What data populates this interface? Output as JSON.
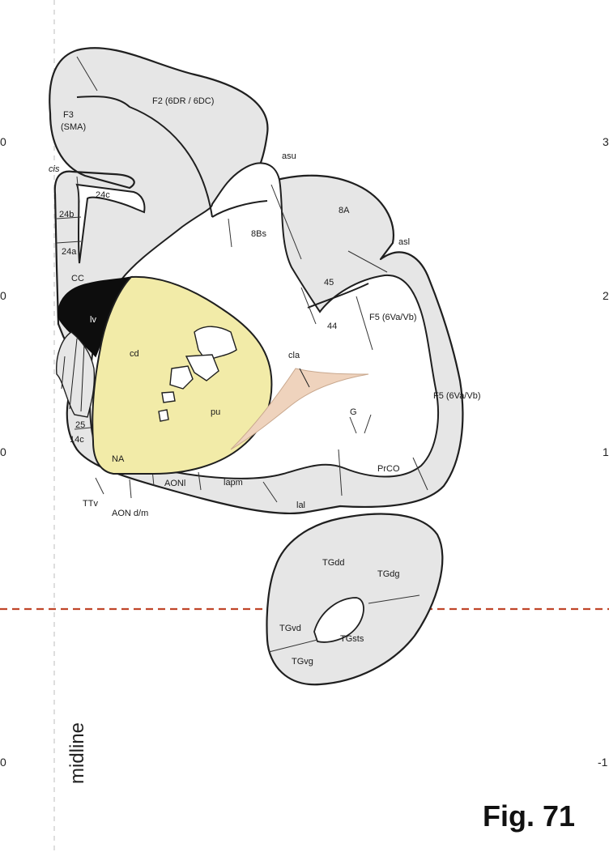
{
  "figure": {
    "label": "Fig. 71",
    "midline_label": "midline",
    "ticks_left": [
      "0",
      "0",
      "0",
      "0"
    ],
    "ticks_right": [
      "3",
      "2",
      "1",
      "-1"
    ]
  },
  "regions": {
    "f2": "F2 (6DR / 6DC)",
    "f3_line1": "F3",
    "f3_line2": "(SMA)",
    "cis": "cis",
    "a24c": "24c",
    "a24b": "24b",
    "a24a": "24a",
    "cc": "CC",
    "lv": "lv",
    "cd": "cd",
    "pu": "pu",
    "cla": "cla",
    "asu": "asu",
    "a8bs": "8Bs",
    "a8a": "8A",
    "asl": "asl",
    "a45": "45",
    "a44": "44",
    "f5a": "F5 (6Va/Vb)",
    "f5b": "F5 (6Va/Vb)",
    "g": "G",
    "a25": "25",
    "a14c": "14c",
    "na": "NA",
    "ttv": "TTv",
    "aon_dm": "AON d/m",
    "aonl": "AONl",
    "iapm": "lapm",
    "ial": "lal",
    "prco": "PrCO",
    "tgdd": "TGdd",
    "tgdg": "TGdg",
    "tgvd": "TGvd",
    "tgsts": "TGsts",
    "tgvg": "TGvg"
  },
  "colors": {
    "gray_matter": "#e6e6e6",
    "striatum": "#f2eba8",
    "ventricle": "#0d0d0d",
    "claustrum": "#efd3bd",
    "reference_line": "#c0462a",
    "midline_guide": "#cfcfcf"
  }
}
